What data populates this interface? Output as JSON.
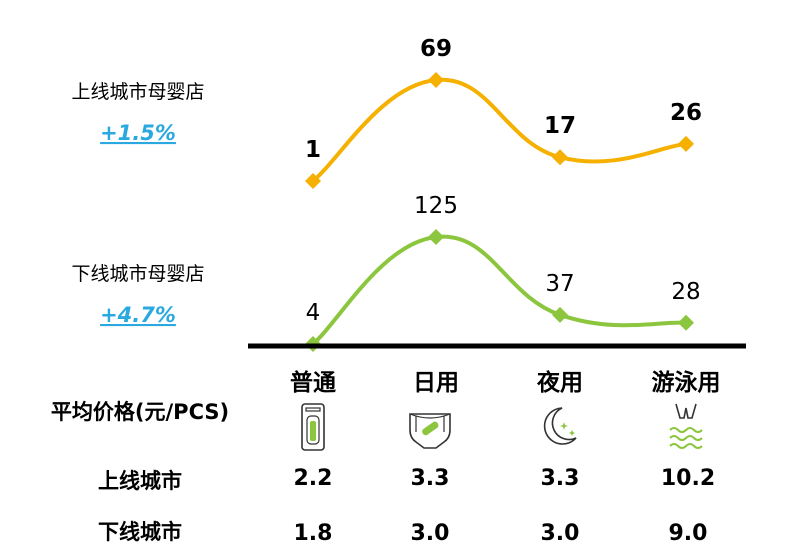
{
  "chart_data": {
    "type": "line",
    "categories": [
      "普通",
      "日用",
      "夜用",
      "游泳用"
    ],
    "series": [
      {
        "name": "上线城市母婴店",
        "growth": "+1.5%",
        "values": [
          1,
          69,
          17,
          26
        ],
        "color": "#f5b000"
      },
      {
        "name": "下线城市母婴店",
        "growth": "+4.7%",
        "values": [
          4,
          125,
          37,
          28
        ],
        "color": "#8cc63f"
      }
    ],
    "price_table": {
      "header": "平均价格(元/PCS)",
      "rows": [
        {
          "name": "上线城市",
          "values": [
            "2.2",
            "3.3",
            "3.3",
            "10.2"
          ]
        },
        {
          "name": "下线城市",
          "values": [
            "1.8",
            "3.0",
            "3.0",
            "9.0"
          ]
        }
      ]
    },
    "category_icons": [
      "wipes-pack-icon",
      "diaper-icon",
      "moon-stars-icon",
      "swim-pants-icon"
    ],
    "icon_color": "#8cc63f",
    "axis_color": "#000000"
  }
}
